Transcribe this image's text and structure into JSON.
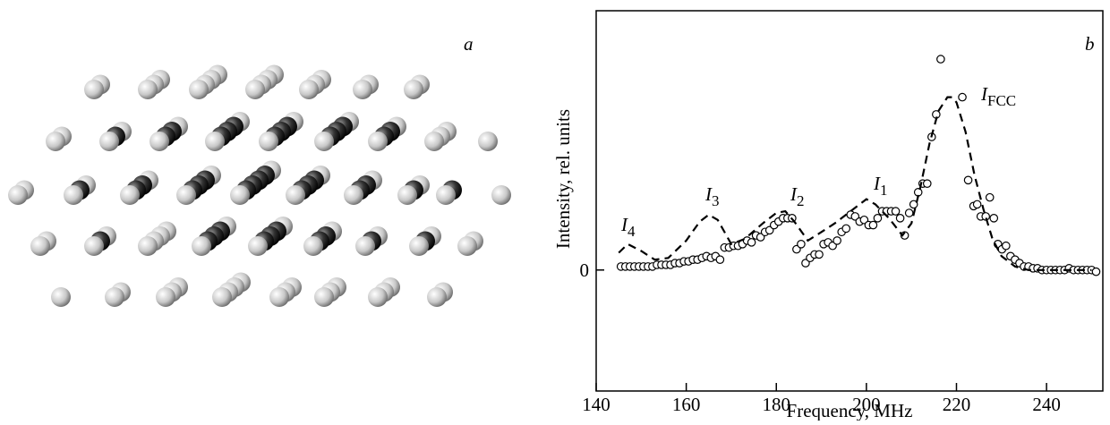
{
  "panel_a": {
    "label": "a"
  },
  "chart_data": {
    "type": "scatter",
    "panel_label": "b",
    "xlabel": "Frequency, MHz",
    "ylabel": "Intensity, rel. units",
    "xlim": [
      140,
      252.5
    ],
    "ylim": [
      -0.7,
      1.5
    ],
    "xticks": [
      140,
      160,
      180,
      200,
      220,
      240
    ],
    "yticks": [
      0
    ],
    "series": [
      {
        "type": "scatter",
        "marker": "open-circle",
        "color": "#000000",
        "x": [
          145.5,
          146.5,
          147.5,
          148.5,
          149.5,
          150.5,
          151.5,
          152.5,
          153.5,
          154.5,
          155.5,
          156.5,
          157.5,
          158.5,
          159.5,
          160.5,
          161.5,
          162.5,
          163.5,
          164.5,
          165.5,
          166.5,
          167.5,
          168.5,
          169.5,
          170.5,
          171.5,
          172.5,
          173.5,
          174.5,
          175.5,
          176.5,
          177.5,
          178.5,
          179.5,
          180.5,
          181.5,
          182.5,
          183.5,
          184.5,
          185.5,
          186.5,
          187.5,
          188.5,
          189.5,
          190.5,
          191.5,
          192.5,
          193.5,
          194.5,
          195.5,
          196.5,
          197.5,
          198.5,
          199.5,
          200.5,
          201.5,
          202.5,
          203.5,
          204.5,
          205.5,
          206.5,
          207.5,
          208.5,
          209.5,
          210.5,
          211.5,
          212.5,
          213.5,
          214.5,
          215.5,
          216.5,
          221.3,
          222.6,
          223.8,
          224.6,
          225.4,
          226.5,
          227.4,
          228.3,
          229.2,
          230.1,
          231,
          232,
          233,
          234,
          235,
          236,
          237,
          238,
          239,
          240,
          241,
          242,
          243,
          244,
          245,
          246,
          247,
          248,
          249,
          250,
          251
        ],
        "values": [
          0.02,
          0.02,
          0.02,
          0.02,
          0.02,
          0.02,
          0.02,
          0.02,
          0.03,
          0.03,
          0.03,
          0.03,
          0.04,
          0.04,
          0.05,
          0.05,
          0.06,
          0.06,
          0.07,
          0.08,
          0.07,
          0.08,
          0.06,
          0.13,
          0.13,
          0.14,
          0.14,
          0.15,
          0.17,
          0.16,
          0.2,
          0.19,
          0.22,
          0.23,
          0.26,
          0.28,
          0.3,
          0.3,
          0.3,
          0.12,
          0.15,
          0.04,
          0.07,
          0.09,
          0.09,
          0.15,
          0.16,
          0.14,
          0.17,
          0.22,
          0.24,
          0.32,
          0.31,
          0.28,
          0.29,
          0.26,
          0.26,
          0.3,
          0.34,
          0.34,
          0.34,
          0.34,
          0.3,
          0.2,
          0.33,
          0.38,
          0.45,
          0.5,
          0.5,
          0.77,
          0.9,
          1.22,
          1.0,
          0.52,
          0.37,
          0.38,
          0.31,
          0.31,
          0.42,
          0.3,
          0.15,
          0.12,
          0.14,
          0.08,
          0.06,
          0.04,
          0.02,
          0.02,
          0.01,
          0.01,
          0.0,
          0.0,
          0.0,
          0.0,
          0.0,
          0.0,
          0.01,
          0.0,
          0.0,
          0.0,
          0.0,
          0.0,
          -0.01
        ]
      },
      {
        "type": "line",
        "style": "dashed",
        "color": "#000000",
        "x": [
          145,
          147,
          150,
          153,
          156,
          160,
          163,
          165,
          167,
          170,
          173,
          177,
          180,
          182,
          184,
          187,
          190,
          193,
          196,
          200,
          202,
          205,
          208,
          210,
          212,
          214,
          216,
          218,
          219,
          220,
          222,
          224,
          226,
          228,
          230,
          233,
          236,
          240,
          250
        ],
        "values": [
          0.1,
          0.15,
          0.11,
          0.06,
          0.07,
          0.17,
          0.28,
          0.32,
          0.29,
          0.15,
          0.18,
          0.27,
          0.33,
          0.34,
          0.28,
          0.17,
          0.22,
          0.27,
          0.33,
          0.41,
          0.38,
          0.3,
          0.2,
          0.27,
          0.48,
          0.73,
          0.92,
          1.0,
          1.0,
          0.97,
          0.8,
          0.55,
          0.35,
          0.18,
          0.08,
          0.02,
          0.0,
          0.0,
          0.0
        ]
      }
    ],
    "annotations": [
      {
        "text": "I",
        "sub": "4"
      },
      {
        "text": "I",
        "sub": "3"
      },
      {
        "text": "I",
        "sub": "2"
      },
      {
        "text": "I",
        "sub": "1"
      },
      {
        "text": "I",
        "sub": "FCC"
      }
    ]
  }
}
